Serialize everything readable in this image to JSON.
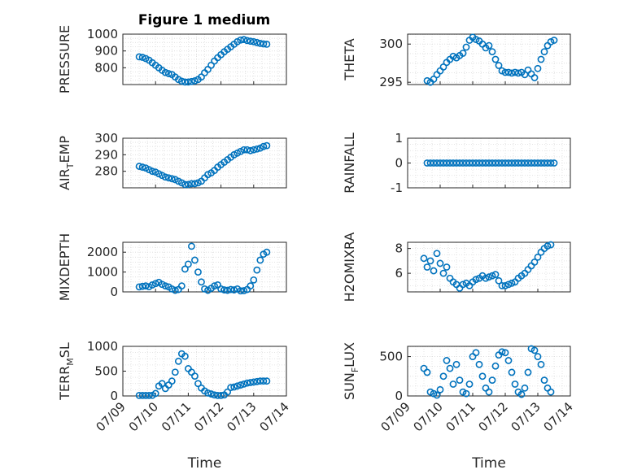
{
  "figure": {
    "title": "Figure 1 medium"
  },
  "style": {
    "marker_color": "#0072BD",
    "grid_color": "#dcdcdc",
    "axis_color": "#262626"
  },
  "chart_data": [
    {
      "type": "scatter",
      "name": "PRESSURE",
      "ylabel": "PRESSURE",
      "ylabel_sub": "",
      "ylim": [
        700,
        1000
      ],
      "yticks": [
        800,
        900,
        1000
      ],
      "x": [
        "07/09.5",
        "07/09.6",
        "07/09.7",
        "07/09.8",
        "07/09.9",
        "07/10.0",
        "07/10.1",
        "07/10.2",
        "07/10.3",
        "07/10.4",
        "07/10.5",
        "07/10.6",
        "07/10.7",
        "07/10.8",
        "07/10.9",
        "07/11.0",
        "07/11.1",
        "07/11.2",
        "07/11.3",
        "07/11.4",
        "07/11.5",
        "07/11.6",
        "07/11.7",
        "07/11.8",
        "07/11.9",
        "07/12.0",
        "07/12.1",
        "07/12.2",
        "07/12.3",
        "07/12.4",
        "07/12.5",
        "07/12.6",
        "07/12.7",
        "07/12.8",
        "07/12.9",
        "07/13.0",
        "07/13.1",
        "07/13.2",
        "07/13.3",
        "07/13.4"
      ],
      "y": [
        865,
        862,
        855,
        845,
        830,
        815,
        800,
        785,
        772,
        765,
        760,
        745,
        730,
        720,
        715,
        715,
        718,
        722,
        730,
        745,
        770,
        790,
        815,
        840,
        860,
        878,
        895,
        910,
        925,
        940,
        955,
        965,
        968,
        962,
        958,
        955,
        950,
        945,
        942,
        940
      ]
    },
    {
      "type": "scatter",
      "name": "THETA",
      "ylabel": "THETA",
      "ylabel_sub": "",
      "ylim": [
        294.7,
        301.3
      ],
      "yticks": [
        295,
        300
      ],
      "x": [
        "07/09.6",
        "07/09.7",
        "07/09.8",
        "07/09.9",
        "07/10.0",
        "07/10.1",
        "07/10.2",
        "07/10.3",
        "07/10.4",
        "07/10.5",
        "07/10.6",
        "07/10.7",
        "07/10.8",
        "07/10.9",
        "07/11.0",
        "07/11.1",
        "07/11.2",
        "07/11.3",
        "07/11.4",
        "07/11.5",
        "07/11.6",
        "07/11.7",
        "07/11.8",
        "07/11.9",
        "07/12.0",
        "07/12.1",
        "07/12.2",
        "07/12.3",
        "07/12.4",
        "07/12.5",
        "07/12.6",
        "07/12.7",
        "07/12.8",
        "07/12.9",
        "07/13.0",
        "07/13.1",
        "07/13.2",
        "07/13.3",
        "07/13.4",
        "07/13.5"
      ],
      "y": [
        295.2,
        295.0,
        295.4,
        296.0,
        296.5,
        297.0,
        297.6,
        298.0,
        298.4,
        298.2,
        298.5,
        298.8,
        299.6,
        300.5,
        300.9,
        300.6,
        300.4,
        300.0,
        299.5,
        299.8,
        299.0,
        298.0,
        297.2,
        296.5,
        296.3,
        296.3,
        296.2,
        296.3,
        296.2,
        296.3,
        296.0,
        296.6,
        296.1,
        295.6,
        296.8,
        298.0,
        299.0,
        299.8,
        300.3,
        300.5
      ]
    },
    {
      "type": "scatter",
      "name": "AIR_TEMP",
      "ylabel": "AIR",
      "ylabel_sub": "T",
      "ylabel_rest": "EMP",
      "ylim": [
        270,
        300
      ],
      "yticks": [
        280,
        290,
        300
      ],
      "x": [
        "07/09.5",
        "07/09.6",
        "07/09.7",
        "07/09.8",
        "07/09.9",
        "07/10.0",
        "07/10.1",
        "07/10.2",
        "07/10.3",
        "07/10.4",
        "07/10.5",
        "07/10.6",
        "07/10.7",
        "07/10.8",
        "07/10.9",
        "07/11.0",
        "07/11.1",
        "07/11.2",
        "07/11.3",
        "07/11.4",
        "07/11.5",
        "07/11.6",
        "07/11.7",
        "07/11.8",
        "07/11.9",
        "07/12.0",
        "07/12.1",
        "07/12.2",
        "07/12.3",
        "07/12.4",
        "07/12.5",
        "07/12.6",
        "07/12.7",
        "07/12.8",
        "07/12.9",
        "07/13.0",
        "07/13.1",
        "07/13.2",
        "07/13.3",
        "07/13.4"
      ],
      "y": [
        283,
        282.5,
        282,
        281,
        280,
        279.5,
        278.5,
        277.5,
        276.5,
        276,
        275.5,
        275,
        274,
        273,
        272,
        272,
        272.5,
        272.5,
        273,
        274,
        276,
        278,
        279,
        280.5,
        282.5,
        284,
        285.5,
        287,
        288.5,
        290,
        291,
        292,
        293,
        293,
        292.5,
        293,
        293.5,
        294,
        295,
        295.5
      ]
    },
    {
      "type": "scatter",
      "name": "RAINFALL",
      "ylabel": "RAINFALL",
      "ylabel_sub": "",
      "ylim": [
        -1,
        1
      ],
      "yticks": [
        -1,
        0,
        1
      ],
      "x": [
        "07/09.6",
        "07/09.7",
        "07/09.8",
        "07/09.9",
        "07/10.0",
        "07/10.1",
        "07/10.2",
        "07/10.3",
        "07/10.4",
        "07/10.5",
        "07/10.6",
        "07/10.7",
        "07/10.8",
        "07/10.9",
        "07/11.0",
        "07/11.1",
        "07/11.2",
        "07/11.3",
        "07/11.4",
        "07/11.5",
        "07/11.6",
        "07/11.7",
        "07/11.8",
        "07/11.9",
        "07/12.0",
        "07/12.1",
        "07/12.2",
        "07/12.3",
        "07/12.4",
        "07/12.5",
        "07/12.6",
        "07/12.7",
        "07/12.8",
        "07/12.9",
        "07/13.0",
        "07/13.1",
        "07/13.2",
        "07/13.3",
        "07/13.4",
        "07/13.5"
      ],
      "y": [
        0,
        0,
        0,
        0,
        0,
        0,
        0,
        0,
        0,
        0,
        0,
        0,
        0,
        0,
        0,
        0,
        0,
        0,
        0,
        0,
        0,
        0,
        0,
        0,
        0,
        0,
        0,
        0,
        0,
        0,
        0,
        0,
        0,
        0,
        0,
        0,
        0,
        0,
        0,
        0
      ]
    },
    {
      "type": "scatter",
      "name": "MIXDEPTH",
      "ylabel": "MIXDEPTH",
      "ylabel_sub": "",
      "ylim": [
        0,
        2500
      ],
      "yticks": [
        0,
        1000,
        2000
      ],
      "x": [
        "07/09.5",
        "07/09.6",
        "07/09.7",
        "07/09.8",
        "07/09.9",
        "07/10.0",
        "07/10.1",
        "07/10.2",
        "07/10.3",
        "07/10.4",
        "07/10.5",
        "07/10.6",
        "07/10.7",
        "07/10.8",
        "07/10.9",
        "07/11.0",
        "07/11.1",
        "07/11.2",
        "07/11.3",
        "07/11.4",
        "07/11.5",
        "07/11.6",
        "07/11.7",
        "07/11.8",
        "07/11.9",
        "07/12.0",
        "07/12.1",
        "07/12.2",
        "07/12.3",
        "07/12.4",
        "07/12.5",
        "07/12.6",
        "07/12.7",
        "07/12.8",
        "07/12.9",
        "07/13.0",
        "07/13.1",
        "07/13.2",
        "07/13.3",
        "07/13.4"
      ],
      "y": [
        250,
        280,
        300,
        260,
        350,
        420,
        480,
        380,
        300,
        250,
        150,
        80,
        120,
        300,
        1150,
        1400,
        2300,
        1600,
        1000,
        500,
        150,
        80,
        180,
        300,
        350,
        150,
        100,
        80,
        120,
        100,
        150,
        50,
        60,
        120,
        300,
        600,
        1100,
        1600,
        1900,
        2000
      ]
    },
    {
      "type": "scatter",
      "name": "H2OMIXRA",
      "ylabel": "H2OMIXRA",
      "ylabel_sub": "",
      "ylim": [
        4.5,
        8.5
      ],
      "yticks": [
        6,
        8
      ],
      "x": [
        "07/09.5",
        "07/09.6",
        "07/09.7",
        "07/09.8",
        "07/09.9",
        "07/10.0",
        "07/10.1",
        "07/10.2",
        "07/10.3",
        "07/10.4",
        "07/10.5",
        "07/10.6",
        "07/10.7",
        "07/10.8",
        "07/10.9",
        "07/11.0",
        "07/11.1",
        "07/11.2",
        "07/11.3",
        "07/11.4",
        "07/11.5",
        "07/11.6",
        "07/11.7",
        "07/11.8",
        "07/11.9",
        "07/12.0",
        "07/12.1",
        "07/12.2",
        "07/12.3",
        "07/12.4",
        "07/12.5",
        "07/12.6",
        "07/12.7",
        "07/12.8",
        "07/12.9",
        "07/13.0",
        "07/13.1",
        "07/13.2",
        "07/13.3",
        "07/13.4"
      ],
      "y": [
        7.2,
        6.5,
        7.0,
        6.2,
        7.6,
        6.8,
        6.0,
        6.5,
        5.6,
        5.3,
        5.1,
        4.8,
        5.1,
        5.2,
        5.0,
        5.3,
        5.5,
        5.6,
        5.8,
        5.6,
        5.7,
        5.8,
        5.9,
        5.4,
        5.0,
        5.0,
        5.1,
        5.2,
        5.3,
        5.6,
        5.8,
        6.0,
        6.3,
        6.6,
        6.9,
        7.3,
        7.7,
        8.0,
        8.2,
        8.3
      ]
    },
    {
      "type": "scatter",
      "name": "TERR_MSL",
      "ylabel": "TERR",
      "ylabel_sub": "M",
      "ylabel_rest": "SL",
      "ylim": [
        0,
        1000
      ],
      "yticks": [
        0,
        500,
        1000
      ],
      "xlim": [
        "07/09",
        "07/14"
      ],
      "xticks": [
        "07/09",
        "07/10",
        "07/11",
        "07/12",
        "07/13",
        "07/14"
      ],
      "xlabel": "Time",
      "x": [
        "07/09.5",
        "07/09.6",
        "07/09.7",
        "07/09.8",
        "07/09.9",
        "07/10.0",
        "07/10.1",
        "07/10.2",
        "07/10.3",
        "07/10.4",
        "07/10.5",
        "07/10.6",
        "07/10.7",
        "07/10.8",
        "07/10.9",
        "07/11.0",
        "07/11.1",
        "07/11.2",
        "07/11.3",
        "07/11.4",
        "07/11.5",
        "07/11.6",
        "07/11.7",
        "07/11.8",
        "07/11.9",
        "07/12.0",
        "07/12.1",
        "07/12.2",
        "07/12.3",
        "07/12.4",
        "07/12.5",
        "07/12.6",
        "07/12.7",
        "07/12.8",
        "07/12.9",
        "07/13.0",
        "07/13.1",
        "07/13.2",
        "07/13.3",
        "07/13.4"
      ],
      "y": [
        10,
        10,
        10,
        10,
        12,
        50,
        200,
        250,
        150,
        220,
        300,
        480,
        700,
        850,
        800,
        550,
        480,
        400,
        250,
        160,
        100,
        60,
        40,
        20,
        10,
        10,
        20,
        80,
        170,
        180,
        200,
        220,
        240,
        260,
        270,
        280,
        290,
        300,
        300,
        300
      ]
    },
    {
      "type": "scatter",
      "name": "SUN_FLUX",
      "ylabel": "SUN",
      "ylabel_sub": "F",
      "ylabel_rest": "LUX",
      "ylim": [
        0,
        630
      ],
      "yticks": [
        0,
        500
      ],
      "xlim": [
        "07/09",
        "07/14"
      ],
      "xticks": [
        "07/09",
        "07/10",
        "07/11",
        "07/12",
        "07/13",
        "07/14"
      ],
      "xlabel": "Time",
      "x": [
        "07/09.5",
        "07/09.6",
        "07/09.7",
        "07/09.8",
        "07/09.9",
        "07/10.0",
        "07/10.1",
        "07/10.2",
        "07/10.3",
        "07/10.4",
        "07/10.5",
        "07/10.6",
        "07/10.7",
        "07/10.8",
        "07/10.9",
        "07/11.0",
        "07/11.1",
        "07/11.2",
        "07/11.3",
        "07/11.4",
        "07/11.5",
        "07/11.6",
        "07/11.7",
        "07/11.8",
        "07/11.9",
        "07/12.0",
        "07/12.1",
        "07/12.2",
        "07/12.3",
        "07/12.4",
        "07/12.5",
        "07/12.6",
        "07/12.7",
        "07/12.8",
        "07/12.9",
        "07/13.0",
        "07/13.1",
        "07/13.2",
        "07/13.3",
        "07/13.4"
      ],
      "y": [
        350,
        300,
        50,
        30,
        10,
        80,
        250,
        450,
        350,
        150,
        400,
        200,
        50,
        30,
        150,
        500,
        550,
        400,
        250,
        100,
        50,
        200,
        380,
        520,
        560,
        550,
        450,
        300,
        150,
        50,
        20,
        100,
        300,
        600,
        580,
        500,
        400,
        200,
        100,
        50
      ]
    }
  ]
}
